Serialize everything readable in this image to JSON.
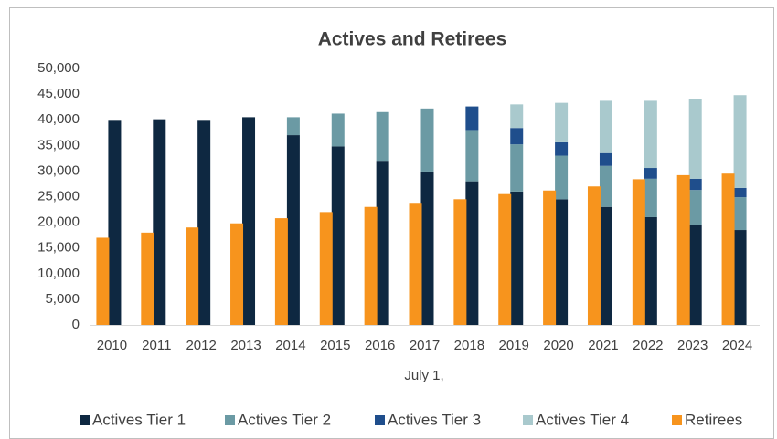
{
  "chart_data": {
    "type": "bar",
    "title": "Actives and Retirees",
    "x_label": "July 1,",
    "categories": [
      "2010",
      "2011",
      "2012",
      "2013",
      "2014",
      "2015",
      "2016",
      "2017",
      "2018",
      "2019",
      "2020",
      "2021",
      "2022",
      "2023",
      "2024"
    ],
    "series": [
      {
        "name": "Actives Tier 1",
        "color": "#0e2841",
        "stack": "actives",
        "values": [
          39800,
          40100,
          39800,
          40500,
          37000,
          34800,
          32000,
          29900,
          28000,
          26000,
          24500,
          23000,
          21000,
          19500,
          18500
        ]
      },
      {
        "name": "Actives Tier 2",
        "color": "#6b9aa4",
        "stack": "actives",
        "values": [
          null,
          null,
          null,
          null,
          3500,
          6400,
          9500,
          12300,
          10000,
          9200,
          8500,
          8000,
          7500,
          6800,
          6400
        ]
      },
      {
        "name": "Actives Tier 3",
        "color": "#1f4e8c",
        "stack": "actives",
        "values": [
          null,
          null,
          null,
          null,
          null,
          null,
          null,
          null,
          4600,
          3200,
          2600,
          2500,
          2100,
          2200,
          1800
        ]
      },
      {
        "name": "Actives Tier 4",
        "color": "#a9c9cd",
        "stack": "actives",
        "values": [
          null,
          null,
          null,
          null,
          null,
          null,
          null,
          null,
          null,
          4600,
          7700,
          10200,
          13100,
          15500,
          18100
        ]
      },
      {
        "name": "Retirees",
        "color": "#f7941d",
        "stack": "retirees",
        "values": [
          17000,
          18000,
          19000,
          19800,
          20800,
          22000,
          23000,
          23800,
          24500,
          25500,
          26200,
          27000,
          28400,
          29200,
          29500
        ]
      }
    ],
    "ylim": [
      0,
      50000
    ],
    "yticks": [
      0,
      {
        "value": 5000,
        "label": "5,000"
      },
      {
        "value": 10000,
        "label": "10,000"
      },
      {
        "value": 15000,
        "label": "15,000"
      },
      {
        "value": 20000,
        "label": "20,000"
      },
      {
        "value": 25000,
        "label": "25,000"
      },
      {
        "value": 30000,
        "label": "30,000"
      },
      {
        "value": 35000,
        "label": "35,000"
      },
      {
        "value": 40000,
        "label": "40,000"
      },
      {
        "value": 45000,
        "label": "45,000"
      },
      {
        "value": 50000,
        "label": "50,000"
      }
    ],
    "grid": false,
    "legend": "bottom"
  }
}
